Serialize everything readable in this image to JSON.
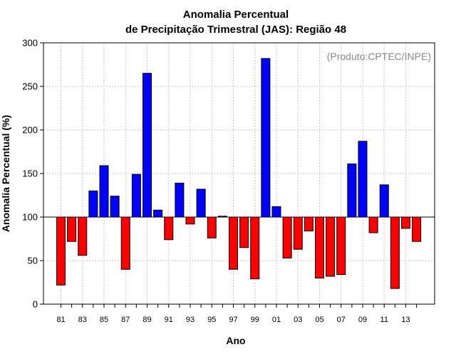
{
  "chart_data": {
    "type": "bar",
    "title_line1": "Anomalia Percentual",
    "title_line2": "de Precipitação Trimestral (JAS): Região 48",
    "xlabel": "Ano",
    "ylabel": "Anomalia Percentual (%)",
    "credit": "(Produto:CPTEC/INPE)",
    "ylim": [
      0,
      300
    ],
    "yticks": [
      0,
      50,
      100,
      150,
      200,
      250,
      300
    ],
    "baseline": 100,
    "grid": true,
    "categories": [
      "81",
      "82",
      "83",
      "84",
      "85",
      "86",
      "87",
      "88",
      "89",
      "90",
      "91",
      "92",
      "93",
      "94",
      "95",
      "96",
      "97",
      "98",
      "99",
      "00",
      "01",
      "02",
      "03",
      "04",
      "05",
      "06",
      "07",
      "08",
      "09",
      "10",
      "11",
      "12",
      "13",
      "14"
    ],
    "xtick_labels": [
      "81",
      "83",
      "85",
      "87",
      "89",
      "91",
      "93",
      "95",
      "97",
      "99",
      "01",
      "03",
      "05",
      "07",
      "09",
      "11",
      "13"
    ],
    "values": [
      22,
      72,
      56,
      130,
      159,
      124,
      40,
      149,
      265,
      108,
      74,
      139,
      92,
      132,
      76,
      101,
      40,
      65,
      29,
      282,
      112,
      53,
      63,
      84,
      30,
      32,
      34,
      161,
      187,
      82,
      137,
      18,
      87,
      72
    ],
    "colors": {
      "above": "#0000ff",
      "below": "#ff0000",
      "outline": "#000000"
    }
  }
}
